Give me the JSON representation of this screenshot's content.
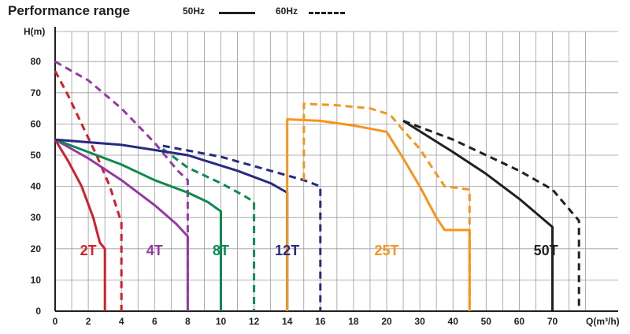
{
  "header": {
    "title": "Performance range",
    "legend_50": "50Hz",
    "legend_60": "60Hz"
  },
  "chart_data": {
    "type": "line",
    "title": "Performance range",
    "ylabel": "H(m)",
    "xlabel": "Q(m³/h)",
    "ylim": [
      0,
      85
    ],
    "yticks": [
      0,
      10,
      20,
      30,
      40,
      50,
      60,
      70,
      80
    ],
    "xticks": [
      0,
      2,
      4,
      6,
      8,
      10,
      12,
      14,
      16,
      18,
      20,
      30,
      40,
      50,
      60,
      70
    ],
    "x_axis_note": "piecewise scale: 0-20 linear, 20-80 compressed",
    "grid": true,
    "legend": [
      {
        "name": "50Hz",
        "style": "solid"
      },
      {
        "name": "60Hz",
        "style": "dashed"
      }
    ],
    "models": [
      {
        "label": "2T",
        "color": "#d31f2a",
        "label_at": [
          2,
          20
        ],
        "series": [
          {
            "name": "50Hz",
            "dash": false,
            "points": [
              [
                0,
                55
              ],
              [
                0.8,
                48
              ],
              [
                1.6,
                40
              ],
              [
                2.3,
                30
              ],
              [
                2.7,
                22
              ],
              [
                3,
                20
              ],
              [
                3,
                0
              ]
            ]
          },
          {
            "name": "60Hz",
            "dash": true,
            "points": [
              [
                0,
                77
              ],
              [
                0.8,
                69
              ],
              [
                1.6,
                60
              ],
              [
                2.5,
                50
              ],
              [
                3.3,
                40
              ],
              [
                3.9,
                30
              ],
              [
                4,
                29
              ],
              [
                4,
                0
              ]
            ]
          }
        ]
      },
      {
        "label": "4T",
        "color": "#943aa0",
        "label_at": [
          6,
          20
        ],
        "series": [
          {
            "name": "50Hz",
            "dash": false,
            "points": [
              [
                0,
                55
              ],
              [
                2,
                49
              ],
              [
                4,
                42
              ],
              [
                6,
                34
              ],
              [
                7.3,
                28
              ],
              [
                8,
                24
              ],
              [
                8,
                0
              ]
            ]
          },
          {
            "name": "60Hz",
            "dash": true,
            "points": [
              [
                0,
                80
              ],
              [
                2,
                74
              ],
              [
                4,
                65
              ],
              [
                6,
                54
              ],
              [
                7.4,
                45
              ],
              [
                8,
                42
              ],
              [
                8,
                0
              ]
            ]
          }
        ]
      },
      {
        "label": "8T",
        "color": "#0f8a4f",
        "label_at": [
          10,
          20
        ],
        "series": [
          {
            "name": "50Hz",
            "dash": false,
            "points": [
              [
                0,
                55
              ],
              [
                2,
                51
              ],
              [
                4,
                47
              ],
              [
                6,
                42
              ],
              [
                8,
                38
              ],
              [
                9.2,
                35
              ],
              [
                10,
                32
              ],
              [
                10,
                0
              ]
            ]
          },
          {
            "name": "60Hz",
            "dash": true,
            "points": [
              [
                6.5,
                52
              ],
              [
                8,
                46
              ],
              [
                10,
                41
              ],
              [
                11.4,
                37
              ],
              [
                12,
                35
              ],
              [
                12,
                0
              ]
            ]
          }
        ]
      },
      {
        "label": "12T",
        "color": "#262a80",
        "label_at": [
          14,
          20
        ],
        "series": [
          {
            "name": "50Hz",
            "dash": false,
            "points": [
              [
                0,
                55
              ],
              [
                4,
                53.3
              ],
              [
                8,
                50
              ],
              [
                11,
                45
              ],
              [
                13,
                41
              ],
              [
                14,
                38
              ],
              [
                14,
                0
              ]
            ]
          },
          {
            "name": "60Hz",
            "dash": true,
            "points": [
              [
                6.5,
                53
              ],
              [
                10,
                49.5
              ],
              [
                13,
                45
              ],
              [
                15,
                42
              ],
              [
                16,
                40
              ],
              [
                16,
                0
              ]
            ]
          }
        ]
      },
      {
        "label": "25T",
        "color": "#f7941d",
        "label_at": [
          20,
          20
        ],
        "series": [
          {
            "name": "50Hz",
            "dash": false,
            "points": [
              [
                14,
                0
              ],
              [
                14,
                61.5
              ],
              [
                16,
                61
              ],
              [
                18,
                59.5
              ],
              [
                20,
                57.5
              ],
              [
                25,
                49
              ],
              [
                30,
                40
              ],
              [
                35,
                30
              ],
              [
                37.5,
                26
              ],
              [
                45,
                26
              ],
              [
                45,
                0
              ]
            ]
          },
          {
            "name": "60Hz",
            "dash": true,
            "points": [
              [
                15,
                42
              ],
              [
                15,
                66.5
              ],
              [
                17,
                66
              ],
              [
                19,
                65
              ],
              [
                21,
                63
              ],
              [
                25,
                58
              ],
              [
                30,
                52
              ],
              [
                35,
                44
              ],
              [
                37.5,
                40
              ],
              [
                45,
                39
              ],
              [
                45,
                0
              ]
            ]
          }
        ]
      },
      {
        "label": "50T",
        "color": "#231f20",
        "label_at": [
          68,
          20
        ],
        "series": [
          {
            "name": "50Hz",
            "dash": false,
            "points": [
              [
                25,
                61
              ],
              [
                40,
                51
              ],
              [
                50,
                44
              ],
              [
                60,
                36
              ],
              [
                70,
                27
              ],
              [
                70,
                0
              ]
            ]
          },
          {
            "name": "60Hz",
            "dash": true,
            "points": [
              [
                25,
                61
              ],
              [
                40,
                55
              ],
              [
                50,
                50
              ],
              [
                60,
                45
              ],
              [
                70,
                39
              ],
              [
                78,
                29
              ],
              [
                78,
                0
              ]
            ]
          }
        ]
      }
    ]
  }
}
